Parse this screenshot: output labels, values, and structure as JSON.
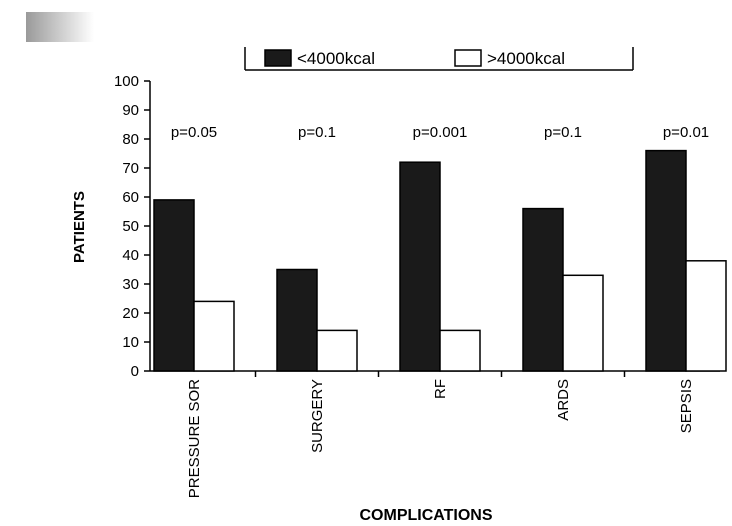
{
  "chart_data": {
    "type": "bar",
    "categories": [
      "PRESSURE SOR",
      "SURGERY",
      "RF",
      "ARDS",
      "SEPSIS"
    ],
    "series": [
      {
        "name": "<4000kcal",
        "values": [
          59,
          35,
          72,
          56,
          76
        ],
        "color": "#1a1a1a"
      },
      {
        "name": ">4000kcal",
        "values": [
          24,
          14,
          14,
          33,
          38
        ],
        "color": "#ffffff"
      }
    ],
    "annotations": [
      "p=0.05",
      "p=0.1",
      "p=0.001",
      "p=0.1",
      "p=0.01"
    ],
    "xlabel": "COMPLICATIONS",
    "ylabel": "PATIENTS",
    "ylim": [
      0,
      100
    ],
    "yticks": [
      0,
      10,
      20,
      30,
      40,
      50,
      60,
      70,
      80,
      90,
      100
    ],
    "grid": false,
    "legend": "top-center"
  }
}
